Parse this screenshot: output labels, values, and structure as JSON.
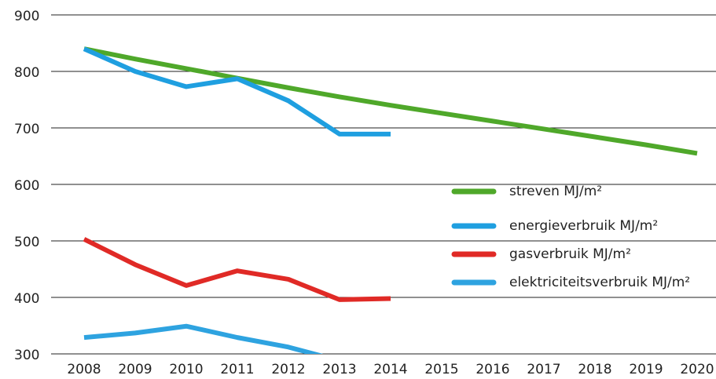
{
  "chart_data": {
    "type": "line",
    "categories": [
      "2008",
      "2009",
      "2010",
      "2011",
      "2012",
      "2013",
      "2014",
      "2015",
      "2016",
      "2017",
      "2018",
      "2019",
      "2020"
    ],
    "series": [
      {
        "name": "streven MJ/m²",
        "color": "#4fa82a",
        "values": [
          840,
          822,
          805,
          788,
          771,
          755,
          740,
          726,
          712,
          698,
          684,
          670,
          655
        ]
      },
      {
        "name": "energieverbruik MJ/m²",
        "color": "#1f9fe0",
        "values": [
          840,
          800,
          773,
          787,
          748,
          689,
          689,
          null,
          null,
          null,
          null,
          null,
          null
        ]
      },
      {
        "name": "gasverbruik MJ/m²",
        "color": "#e02a26",
        "values": [
          503,
          458,
          421,
          447,
          432,
          396,
          398,
          null,
          null,
          null,
          null,
          null,
          null
        ]
      },
      {
        "name": "elektriciteitsverbruik MJ/m²",
        "color": "#2ea3e0",
        "values": [
          329,
          337,
          349,
          329,
          312,
          288,
          null,
          null,
          null,
          null,
          null,
          null,
          null
        ]
      }
    ],
    "ylim": [
      300,
      900
    ],
    "yticks": [
      300,
      400,
      500,
      600,
      700,
      800,
      900
    ],
    "grid": true,
    "legend": "right"
  }
}
